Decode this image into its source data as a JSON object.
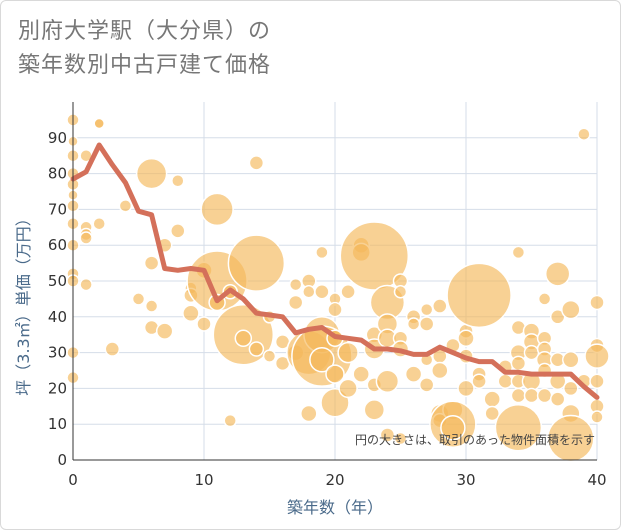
{
  "title_lines": [
    "別府大学駅（大分県）の",
    "築年数別中古戸建て価格"
  ],
  "note": "円の大きさは、取引のあった物件面積を示す",
  "colors": {
    "bubble": "#f5b85a",
    "bubble_stroke": "#ffffff",
    "line": "#d4705a",
    "grid": "#d5dde8",
    "axis": "#333333"
  },
  "chart_data": {
    "type": "scatter",
    "xlabel": "築年数（年）",
    "ylabel": "坪（3.3㎡）単価（万円）",
    "xlim": [
      0,
      40
    ],
    "ylim": [
      0,
      100
    ],
    "x_ticks": [
      0,
      10,
      20,
      30,
      40
    ],
    "y_ticks": [
      0,
      10,
      20,
      30,
      40,
      50,
      60,
      70,
      80,
      90
    ],
    "grid": true,
    "bubbles": [
      {
        "x": 0,
        "y": 95,
        "r": 6
      },
      {
        "x": 0,
        "y": 89,
        "r": 5
      },
      {
        "x": 0,
        "y": 85,
        "r": 6
      },
      {
        "x": 0,
        "y": 80,
        "r": 6
      },
      {
        "x": 0,
        "y": 77,
        "r": 6
      },
      {
        "x": 0,
        "y": 74,
        "r": 5
      },
      {
        "x": 0,
        "y": 71,
        "r": 6
      },
      {
        "x": 0,
        "y": 66,
        "r": 6
      },
      {
        "x": 0,
        "y": 60,
        "r": 6
      },
      {
        "x": 0,
        "y": 52,
        "r": 6
      },
      {
        "x": 0,
        "y": 50,
        "r": 6
      },
      {
        "x": 0,
        "y": 30,
        "r": 6
      },
      {
        "x": 0,
        "y": 23,
        "r": 6
      },
      {
        "x": 1,
        "y": 85,
        "r": 6
      },
      {
        "x": 1,
        "y": 65,
        "r": 6
      },
      {
        "x": 1,
        "y": 63,
        "r": 6
      },
      {
        "x": 1,
        "y": 62,
        "r": 6
      },
      {
        "x": 1,
        "y": 49,
        "r": 6
      },
      {
        "x": 2,
        "y": 94,
        "r": 6
      },
      {
        "x": 2,
        "y": 94,
        "r": 5
      },
      {
        "x": 2,
        "y": 66,
        "r": 6
      },
      {
        "x": 3,
        "y": 31,
        "r": 7
      },
      {
        "x": 4,
        "y": 71,
        "r": 6
      },
      {
        "x": 5,
        "y": 45,
        "r": 6
      },
      {
        "x": 6,
        "y": 80,
        "r": 15
      },
      {
        "x": 6,
        "y": 55,
        "r": 7
      },
      {
        "x": 6,
        "y": 43,
        "r": 6
      },
      {
        "x": 6,
        "y": 37,
        "r": 7
      },
      {
        "x": 7,
        "y": 60,
        "r": 7
      },
      {
        "x": 7,
        "y": 36,
        "r": 8
      },
      {
        "x": 8,
        "y": 78,
        "r": 6
      },
      {
        "x": 8,
        "y": 64,
        "r": 7
      },
      {
        "x": 9,
        "y": 48,
        "r": 6
      },
      {
        "x": 9,
        "y": 46,
        "r": 7
      },
      {
        "x": 9,
        "y": 41,
        "r": 8
      },
      {
        "x": 10,
        "y": 53,
        "r": 8
      },
      {
        "x": 10,
        "y": 38,
        "r": 7
      },
      {
        "x": 11,
        "y": 70,
        "r": 16
      },
      {
        "x": 11,
        "y": 50,
        "r": 30
      },
      {
        "x": 11,
        "y": 44,
        "r": 8
      },
      {
        "x": 12,
        "y": 47,
        "r": 7
      },
      {
        "x": 12,
        "y": 11,
        "r": 6
      },
      {
        "x": 13,
        "y": 35,
        "r": 30
      },
      {
        "x": 13,
        "y": 34,
        "r": 8
      },
      {
        "x": 14,
        "y": 83,
        "r": 7
      },
      {
        "x": 14,
        "y": 55,
        "r": 28
      },
      {
        "x": 14,
        "y": 31,
        "r": 7
      },
      {
        "x": 15,
        "y": 40,
        "r": 6
      },
      {
        "x": 15,
        "y": 29,
        "r": 6
      },
      {
        "x": 16,
        "y": 33,
        "r": 7
      },
      {
        "x": 16,
        "y": 27,
        "r": 7
      },
      {
        "x": 17,
        "y": 49,
        "r": 6
      },
      {
        "x": 17,
        "y": 44,
        "r": 7
      },
      {
        "x": 17,
        "y": 30,
        "r": 8
      },
      {
        "x": 18,
        "y": 50,
        "r": 7
      },
      {
        "x": 18,
        "y": 47,
        "r": 6
      },
      {
        "x": 18,
        "y": 30,
        "r": 22
      },
      {
        "x": 18,
        "y": 13,
        "r": 8
      },
      {
        "x": 19,
        "y": 58,
        "r": 6
      },
      {
        "x": 19,
        "y": 47,
        "r": 7
      },
      {
        "x": 19,
        "y": 35,
        "r": 18
      },
      {
        "x": 19,
        "y": 29,
        "r": 30
      },
      {
        "x": 19,
        "y": 28,
        "r": 12
      },
      {
        "x": 20,
        "y": 45,
        "r": 6
      },
      {
        "x": 20,
        "y": 42,
        "r": 7
      },
      {
        "x": 20,
        "y": 34,
        "r": 8
      },
      {
        "x": 20,
        "y": 24,
        "r": 9
      },
      {
        "x": 20,
        "y": 16,
        "r": 14
      },
      {
        "x": 21,
        "y": 47,
        "r": 7
      },
      {
        "x": 21,
        "y": 30,
        "r": 10
      },
      {
        "x": 21,
        "y": 20,
        "r": 9
      },
      {
        "x": 22,
        "y": 60,
        "r": 8
      },
      {
        "x": 22,
        "y": 58,
        "r": 9
      },
      {
        "x": 22,
        "y": 24,
        "r": 8
      },
      {
        "x": 23,
        "y": 57,
        "r": 34
      },
      {
        "x": 23,
        "y": 35,
        "r": 8
      },
      {
        "x": 23,
        "y": 31,
        "r": 10
      },
      {
        "x": 23,
        "y": 21,
        "r": 7
      },
      {
        "x": 23,
        "y": 14,
        "r": 10
      },
      {
        "x": 24,
        "y": 44,
        "r": 17
      },
      {
        "x": 24,
        "y": 38,
        "r": 10
      },
      {
        "x": 24,
        "y": 34,
        "r": 9
      },
      {
        "x": 24,
        "y": 22,
        "r": 11
      },
      {
        "x": 24,
        "y": 7,
        "r": 7
      },
      {
        "x": 25,
        "y": 50,
        "r": 7
      },
      {
        "x": 25,
        "y": 47,
        "r": 6
      },
      {
        "x": 25,
        "y": 34,
        "r": 7
      },
      {
        "x": 25,
        "y": 31,
        "r": 8
      },
      {
        "x": 25,
        "y": 6,
        "r": 6
      },
      {
        "x": 26,
        "y": 40,
        "r": 7
      },
      {
        "x": 26,
        "y": 38,
        "r": 6
      },
      {
        "x": 26,
        "y": 24,
        "r": 8
      },
      {
        "x": 27,
        "y": 42,
        "r": 6
      },
      {
        "x": 27,
        "y": 38,
        "r": 7
      },
      {
        "x": 27,
        "y": 28,
        "r": 6
      },
      {
        "x": 27,
        "y": 21,
        "r": 7
      },
      {
        "x": 28,
        "y": 43,
        "r": 7
      },
      {
        "x": 28,
        "y": 29,
        "r": 7
      },
      {
        "x": 28,
        "y": 25,
        "r": 8
      },
      {
        "x": 28,
        "y": 13,
        "r": 9
      },
      {
        "x": 28,
        "y": 11,
        "r": 7
      },
      {
        "x": 29,
        "y": 32,
        "r": 7
      },
      {
        "x": 29,
        "y": 14,
        "r": 10
      },
      {
        "x": 29,
        "y": 10,
        "r": 23
      },
      {
        "x": 29,
        "y": 9,
        "r": 12
      },
      {
        "x": 30,
        "y": 36,
        "r": 7
      },
      {
        "x": 30,
        "y": 34,
        "r": 8
      },
      {
        "x": 30,
        "y": 29,
        "r": 7
      },
      {
        "x": 30,
        "y": 20,
        "r": 8
      },
      {
        "x": 31,
        "y": 46,
        "r": 32
      },
      {
        "x": 31,
        "y": 24,
        "r": 7
      },
      {
        "x": 31,
        "y": 22,
        "r": 7
      },
      {
        "x": 32,
        "y": 17,
        "r": 8
      },
      {
        "x": 32,
        "y": 13,
        "r": 7
      },
      {
        "x": 33,
        "y": 26,
        "r": 7
      },
      {
        "x": 33,
        "y": 22,
        "r": 7
      },
      {
        "x": 34,
        "y": 58,
        "r": 6
      },
      {
        "x": 34,
        "y": 37,
        "r": 7
      },
      {
        "x": 34,
        "y": 30,
        "r": 8
      },
      {
        "x": 34,
        "y": 27,
        "r": 7
      },
      {
        "x": 34,
        "y": 22,
        "r": 7
      },
      {
        "x": 34,
        "y": 18,
        "r": 7
      },
      {
        "x": 34,
        "y": 9,
        "r": 23
      },
      {
        "x": 35,
        "y": 36,
        "r": 8
      },
      {
        "x": 35,
        "y": 33,
        "r": 8
      },
      {
        "x": 35,
        "y": 30,
        "r": 7
      },
      {
        "x": 35,
        "y": 22,
        "r": 9
      },
      {
        "x": 35,
        "y": 18,
        "r": 7
      },
      {
        "x": 36,
        "y": 45,
        "r": 6
      },
      {
        "x": 36,
        "y": 34,
        "r": 7
      },
      {
        "x": 36,
        "y": 31,
        "r": 7
      },
      {
        "x": 36,
        "y": 28,
        "r": 8
      },
      {
        "x": 36,
        "y": 25,
        "r": 7
      },
      {
        "x": 36,
        "y": 18,
        "r": 7
      },
      {
        "x": 37,
        "y": 52,
        "r": 12
      },
      {
        "x": 37,
        "y": 40,
        "r": 7
      },
      {
        "x": 37,
        "y": 28,
        "r": 7
      },
      {
        "x": 37,
        "y": 22,
        "r": 8
      },
      {
        "x": 37,
        "y": 17,
        "r": 7
      },
      {
        "x": 38,
        "y": 42,
        "r": 9
      },
      {
        "x": 38,
        "y": 28,
        "r": 8
      },
      {
        "x": 38,
        "y": 20,
        "r": 7
      },
      {
        "x": 38,
        "y": 13,
        "r": 9
      },
      {
        "x": 38,
        "y": 6,
        "r": 23
      },
      {
        "x": 39,
        "y": 91,
        "r": 6
      },
      {
        "x": 39,
        "y": 22,
        "r": 7
      },
      {
        "x": 40,
        "y": 44,
        "r": 7
      },
      {
        "x": 40,
        "y": 32,
        "r": 7
      },
      {
        "x": 40,
        "y": 29,
        "r": 12
      },
      {
        "x": 40,
        "y": 22,
        "r": 7
      },
      {
        "x": 40,
        "y": 15,
        "r": 7
      },
      {
        "x": 40,
        "y": 12,
        "r": 6
      }
    ],
    "line": {
      "x": [
        0,
        1,
        2,
        3,
        4,
        5,
        6,
        7,
        8,
        9,
        10,
        11,
        12,
        13,
        14,
        15,
        16,
        17,
        18,
        19,
        20,
        21,
        22,
        23,
        24,
        25,
        26,
        27,
        28,
        29,
        30,
        31,
        32,
        33,
        34,
        35,
        36,
        37,
        38,
        39,
        40
      ],
      "y": [
        78.5,
        80.5,
        88,
        82.5,
        77.5,
        69.5,
        68.5,
        53.5,
        53,
        53.5,
        53,
        44.5,
        47.5,
        45,
        41,
        40.5,
        40,
        35.5,
        36.5,
        37,
        34.5,
        34,
        33.5,
        31,
        31,
        30.5,
        29.5,
        29.5,
        31.5,
        30,
        28.5,
        27.5,
        27.5,
        24.5,
        24.5,
        24,
        24,
        24,
        24,
        20.5,
        17.5
      ]
    }
  }
}
